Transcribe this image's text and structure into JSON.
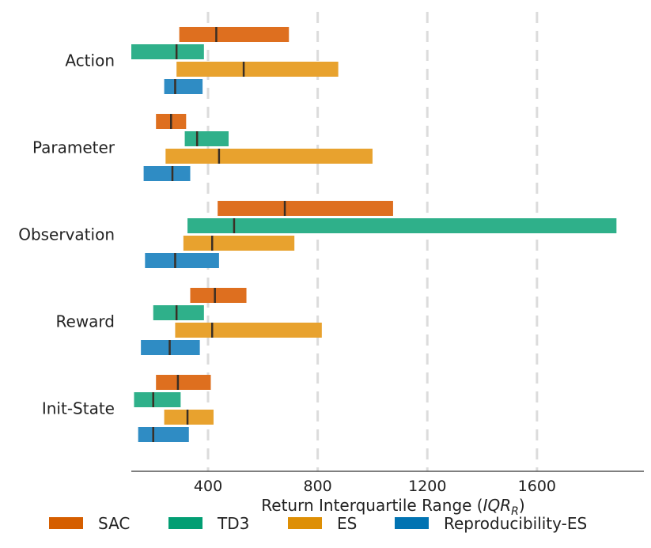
{
  "chart_data": {
    "type": "bar",
    "orientation": "horizontal-range",
    "title": "",
    "xlabel": "Return Interquartile Range (",
    "xlabel_math": "IQR",
    "xlabel_sub": "R",
    "xlabel_close": ")",
    "xlim": [
      120,
      1990
    ],
    "xticks": [
      400,
      800,
      1200,
      1600
    ],
    "xtick_labels": [
      "400",
      "800",
      "1200",
      "1600"
    ],
    "grid": "vertical dashed",
    "legend_position": "bottom",
    "categories": [
      "Action",
      "Parameter",
      "Observation",
      "Reward",
      "Init-State"
    ],
    "series": [
      {
        "name": "SAC",
        "color": "#de6f1f",
        "legend_color": "#d55e00",
        "ranges": [
          [
            295,
            695
          ],
          [
            210,
            320
          ],
          [
            435,
            1075
          ],
          [
            335,
            540
          ],
          [
            210,
            410
          ]
        ],
        "medians": [
          430,
          265,
          680,
          425,
          290
        ]
      },
      {
        "name": "TD3",
        "color": "#2fb08a",
        "legend_color": "#029e73",
        "ranges": [
          [
            120,
            385
          ],
          [
            315,
            475
          ],
          [
            325,
            1890
          ],
          [
            200,
            385
          ],
          [
            130,
            300
          ]
        ],
        "medians": [
          285,
          360,
          495,
          285,
          200
        ]
      },
      {
        "name": "ES",
        "color": "#e8a22e",
        "legend_color": "#de8f05",
        "ranges": [
          [
            285,
            875
          ],
          [
            245,
            1000
          ],
          [
            310,
            715
          ],
          [
            280,
            815
          ],
          [
            240,
            420
          ]
        ],
        "medians": [
          530,
          440,
          415,
          415,
          325
        ]
      },
      {
        "name": "Reproducibility-ES",
        "color": "#2f8cc4",
        "legend_color": "#0173b2",
        "ranges": [
          [
            240,
            380
          ],
          [
            165,
            335
          ],
          [
            170,
            440
          ],
          [
            155,
            370
          ],
          [
            145,
            330
          ]
        ],
        "medians": [
          280,
          270,
          280,
          260,
          200
        ]
      }
    ]
  }
}
